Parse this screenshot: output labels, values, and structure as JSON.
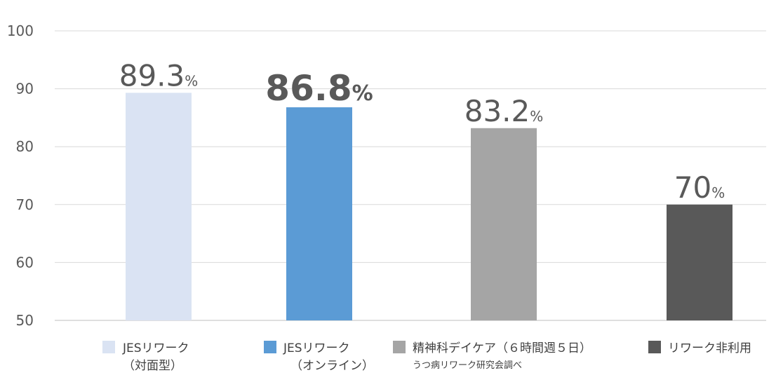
{
  "chart_data": {
    "type": "bar",
    "title": "",
    "xlabel": "",
    "ylabel": "",
    "ylim": [
      50,
      100
    ],
    "yticks": [
      50,
      60,
      70,
      80,
      90,
      100
    ],
    "grid": true,
    "legend_position": "bottom",
    "unit_suffix": "%",
    "categories": [
      {
        "line1": "JESリワーク",
        "line2": "（対面型）",
        "sub": ""
      },
      {
        "line1": "JESリワーク",
        "line2": "（オンライン）",
        "sub": ""
      },
      {
        "line1": "精神科デイケア（６時間週５日）",
        "line2": "",
        "sub": "うつ病リワーク研究会調べ"
      },
      {
        "line1": "リワーク非利用",
        "line2": "",
        "sub": ""
      }
    ],
    "values": [
      89.3,
      86.8,
      83.2,
      70
    ],
    "value_labels": [
      "89.3",
      "86.8",
      "83.2",
      "70"
    ],
    "label_bold": [
      false,
      true,
      false,
      false
    ],
    "colors": [
      "#dae3f3",
      "#5b9bd5",
      "#a5a5a5",
      "#595959"
    ]
  }
}
